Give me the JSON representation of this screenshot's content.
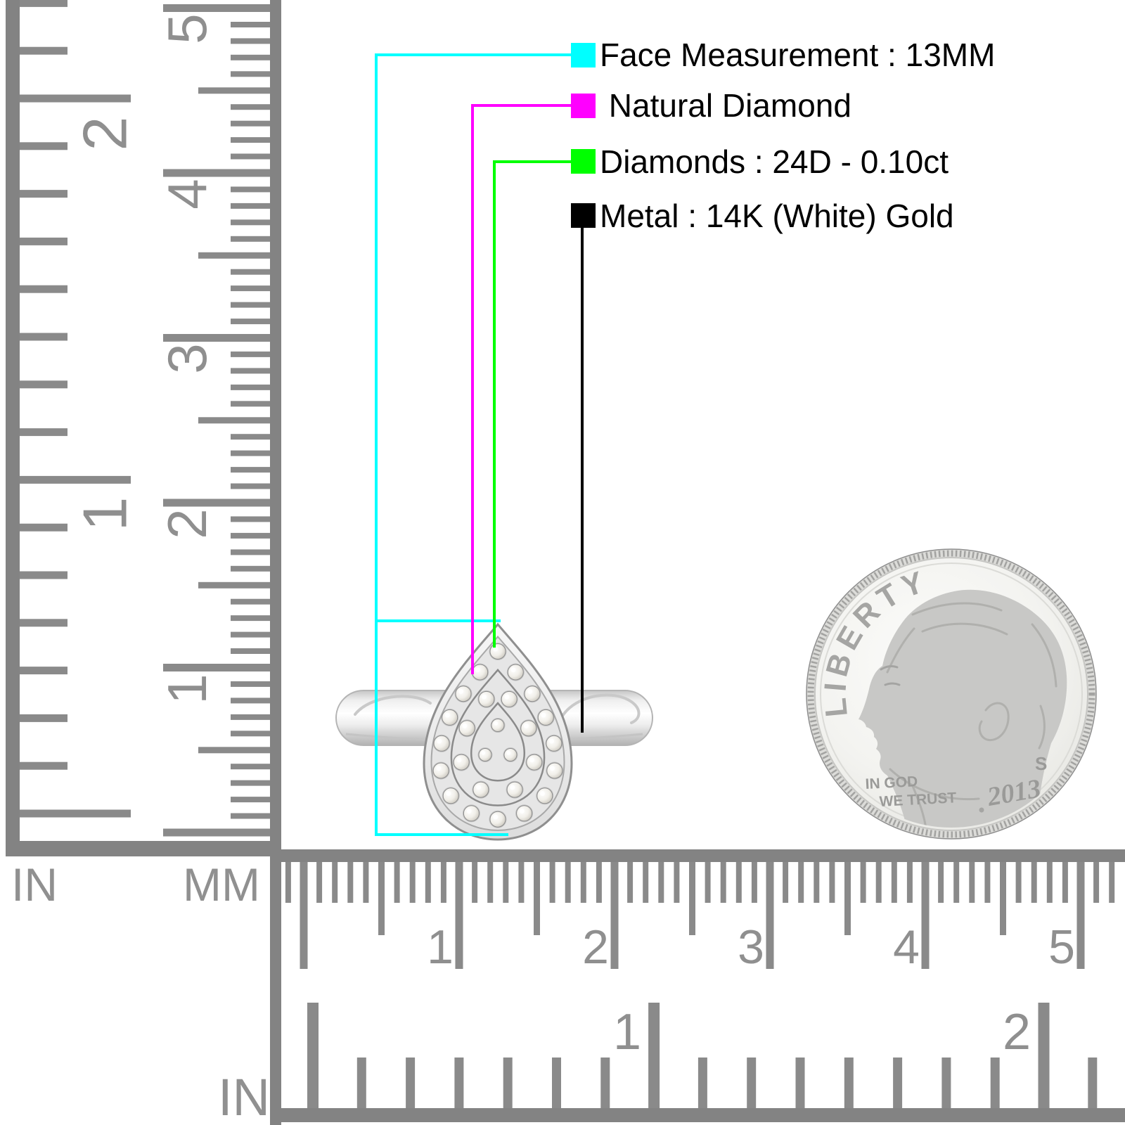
{
  "legend": {
    "items": [
      {
        "name": "face-measurement",
        "swatch_color": "#00FFFF",
        "label": "Face Measurement : 13MM"
      },
      {
        "name": "stone-type",
        "swatch_color": "#FF00FF",
        "label": " Natural Diamond"
      },
      {
        "name": "diamond-details",
        "swatch_color": "#00FF00",
        "label": "Diamonds : 24D - 0.10ct"
      },
      {
        "name": "metal",
        "swatch_color": "#000000",
        "label": "Metal : 14K (White) Gold"
      }
    ]
  },
  "rulers": {
    "vertical_inch": {
      "unit": "IN",
      "labels": [
        "2",
        "1"
      ]
    },
    "vertical_mm": {
      "unit": "MM",
      "labels": [
        "5",
        "4",
        "3",
        "2",
        "1"
      ]
    },
    "horizontal_mm": {
      "labels": [
        "1",
        "2",
        "3",
        "4",
        "5"
      ]
    },
    "horizontal_inch": {
      "unit": "IN",
      "labels": [
        "1",
        "2"
      ]
    }
  },
  "coin": {
    "legend_text": "LIBERTY",
    "motto_line1": "IN GOD",
    "motto_line2": "WE TRUST",
    "year": "2013",
    "mint_mark": "S"
  }
}
